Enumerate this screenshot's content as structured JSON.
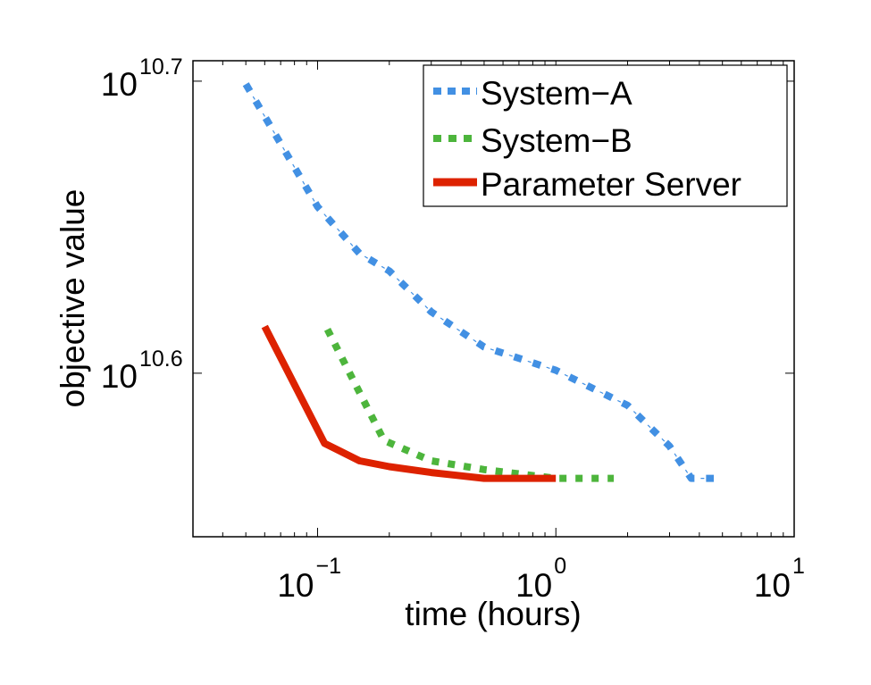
{
  "chart_data": {
    "type": "line",
    "title": "",
    "xlabel": "time (hours)",
    "ylabel": "objective value",
    "xscale": "log",
    "yscale": "log",
    "xlim": [
      0.03,
      10
    ],
    "ylim_log10": [
      10.544,
      10.707
    ],
    "x_ticks": [
      {
        "base": "10",
        "exp": "−1",
        "value": 0.1
      },
      {
        "base": "10",
        "exp": "0",
        "value": 1
      },
      {
        "base": "10",
        "exp": "1",
        "value": 10
      }
    ],
    "y_ticks": [
      {
        "base": "10",
        "exp": "10.7",
        "log10": 10.7
      },
      {
        "base": "10",
        "exp": "10.6",
        "log10": 10.6
      }
    ],
    "grid": false,
    "legend_position": "upper right",
    "series": [
      {
        "name": "System−A",
        "color": "#4290e3",
        "style": "dash-dot",
        "x": [
          0.05,
          0.1,
          0.15,
          0.2,
          0.3,
          0.5,
          1.0,
          2.0,
          3.0,
          3.7,
          4.6
        ],
        "log10_y": [
          10.699,
          10.657,
          10.641,
          10.635,
          10.621,
          10.609,
          10.601,
          10.589,
          10.575,
          10.564,
          10.564
        ]
      },
      {
        "name": "System−B",
        "color": "#4db53c",
        "style": "dotted",
        "x": [
          0.11,
          0.19,
          0.3,
          0.5,
          1.0,
          1.75
        ],
        "log10_y": [
          10.615,
          10.577,
          10.57,
          10.567,
          10.564,
          10.564
        ]
      },
      {
        "name": "Parameter Server",
        "color": "#dd2200",
        "style": "solid",
        "x": [
          0.06,
          0.107,
          0.15,
          0.2,
          0.3,
          0.5,
          1.0
        ],
        "log10_y": [
          10.616,
          10.576,
          10.57,
          10.568,
          10.566,
          10.564,
          10.564
        ]
      }
    ]
  }
}
